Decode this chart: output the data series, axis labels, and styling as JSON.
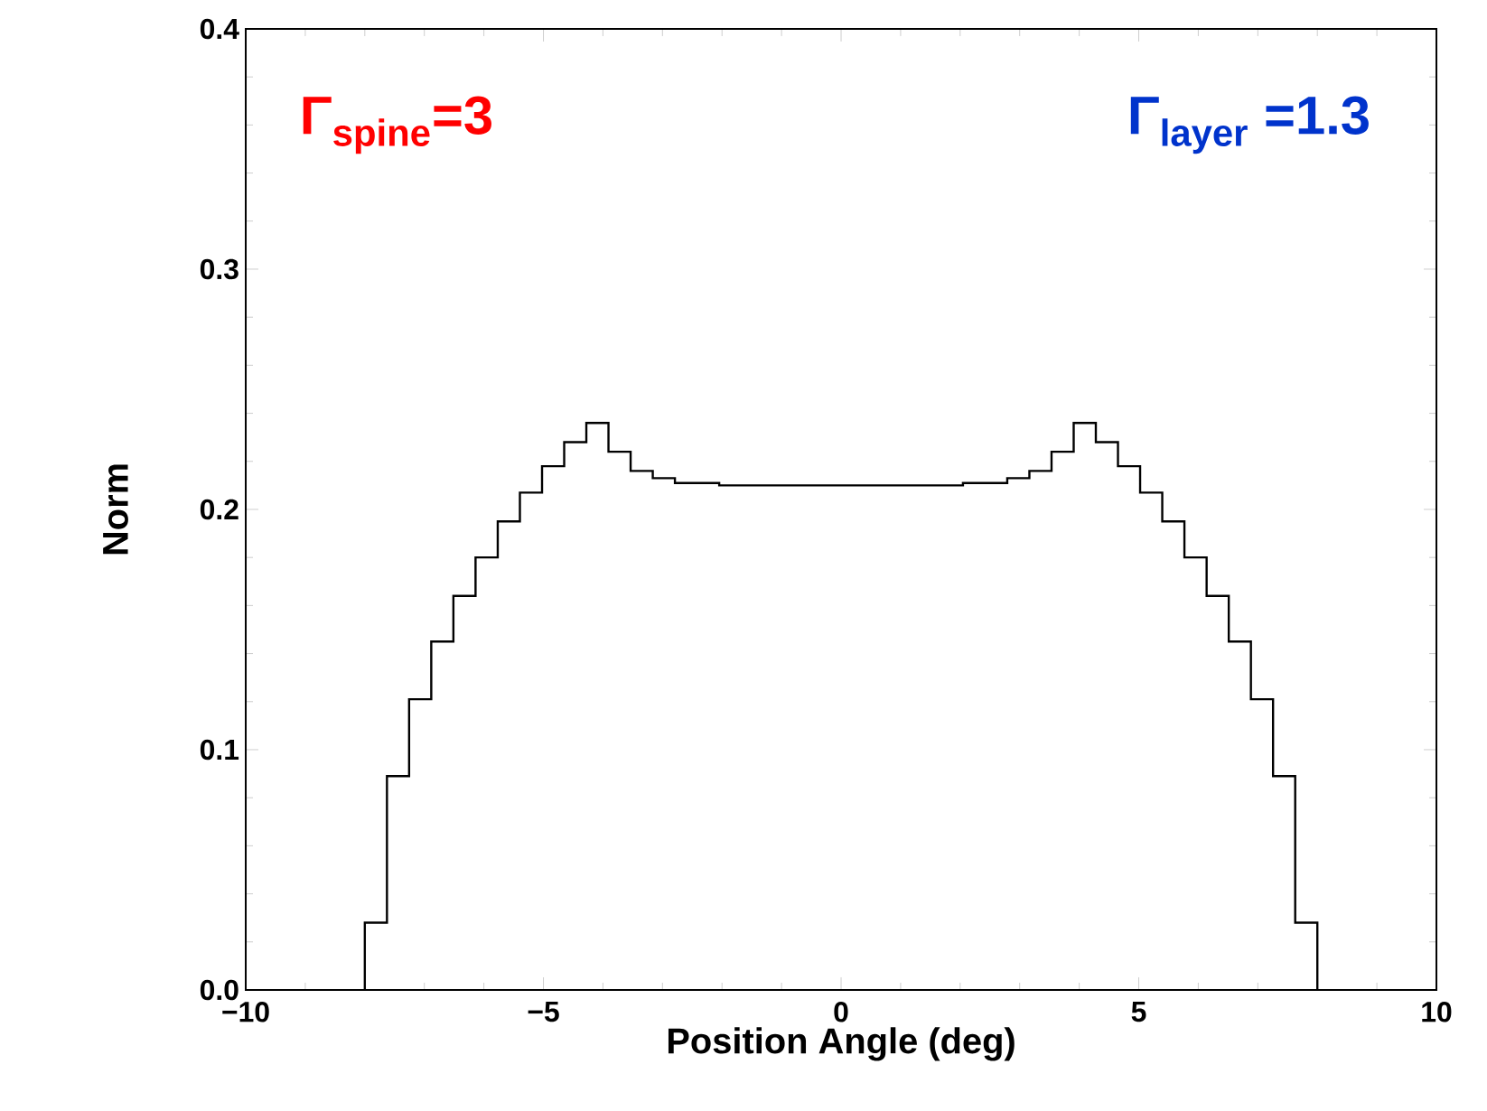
{
  "chart_data": {
    "type": "histogram",
    "xlabel": "Position Angle (deg)",
    "ylabel": "Norm",
    "annotations": [
      "Γ$_{spine}$=3",
      "Γ$_{layer}$ =1.3"
    ],
    "bins": [
      -8.0,
      -7.628,
      -7.256,
      -6.884,
      -6.512,
      -6.14,
      -5.767,
      -5.395,
      -5.023,
      -4.651,
      -4.279,
      -3.907,
      -3.535,
      -3.163,
      -2.791,
      -2.419,
      -2.047,
      -1.674,
      -1.302,
      -0.93,
      -0.558,
      -0.186,
      0.186,
      0.558,
      0.93,
      1.302,
      1.674,
      2.047,
      2.419,
      2.791,
      3.163,
      3.535,
      3.907,
      4.279,
      4.651,
      5.023,
      5.395,
      5.767,
      6.14,
      6.512,
      6.884,
      7.256,
      7.628,
      8.0
    ],
    "values": [
      0.028,
      0.089,
      0.121,
      0.145,
      0.164,
      0.18,
      0.195,
      0.207,
      0.218,
      0.228,
      0.236,
      0.224,
      0.216,
      0.213,
      0.211,
      0.211,
      0.21,
      0.21,
      0.21,
      0.21,
      0.21,
      0.21,
      0.21,
      0.21,
      0.21,
      0.21,
      0.21,
      0.211,
      0.211,
      0.213,
      0.216,
      0.224,
      0.236,
      0.228,
      0.218,
      0.207,
      0.195,
      0.18,
      0.164,
      0.145,
      0.121,
      0.089,
      0.028
    ],
    "color": "#000000",
    "xlim": [
      -10,
      10
    ],
    "ylim": [
      0.0,
      0.4
    ],
    "xticks": [
      {
        "value": -10,
        "label": "−10"
      },
      {
        "value": -5,
        "label": "−5"
      },
      0,
      5,
      10
    ],
    "yticks": [
      {
        "value": 0.0,
        "label": "0.0"
      },
      0.1,
      0.2,
      0.3,
      0.4
    ],
    "grid": false
  }
}
